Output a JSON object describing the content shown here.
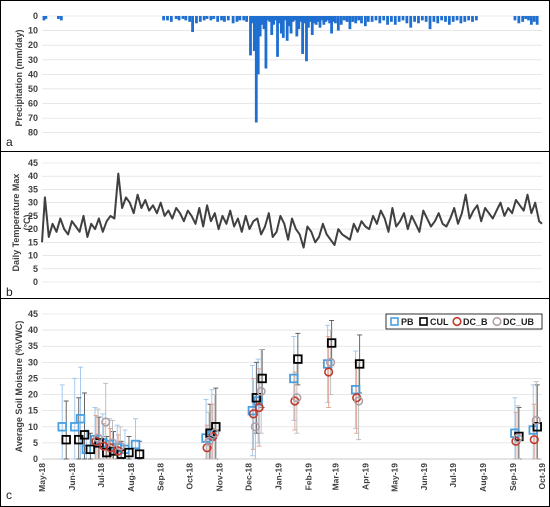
{
  "colors": {
    "precip": "#1f6fd1",
    "temp": "#404040",
    "grid": "#d9d9d9",
    "frame": "#000000",
    "PB": "#4a9fe0",
    "CUL": "#000000",
    "DC_B": "#c0392b",
    "DC_UB": "#b0a0a8",
    "err_PB": "#9cc4ea",
    "err_CUL": "#555555",
    "err_DC_B": "#e0a090",
    "err_DC_UB": "#b8b8b8"
  },
  "panels": [
    {
      "label": "a"
    },
    {
      "label": "b"
    },
    {
      "label": "c"
    }
  ],
  "chart_data": [
    {
      "type": "bar",
      "panel": "a",
      "ylabel": "Precipitation (mm/day)",
      "y_inverted": true,
      "ylim": [
        0,
        85
      ],
      "yticks": [
        "0",
        "10",
        "20",
        "30",
        "40",
        "50",
        "60",
        "70",
        "80"
      ],
      "xlim": [
        "2018-05-01",
        "2019-10-01"
      ],
      "x": [
        "2018-05-03",
        "2018-05-05",
        "2018-05-18",
        "2018-05-21",
        "2018-09-04",
        "2018-09-08",
        "2018-09-12",
        "2018-09-17",
        "2018-09-20",
        "2018-09-24",
        "2018-09-27",
        "2018-10-01",
        "2018-10-04",
        "2018-10-08",
        "2018-10-12",
        "2018-10-16",
        "2018-10-19",
        "2018-10-23",
        "2018-10-26",
        "2018-10-30",
        "2018-11-03",
        "2018-11-06",
        "2018-11-10",
        "2018-11-15",
        "2018-11-19",
        "2018-11-22",
        "2018-11-26",
        "2018-11-29",
        "2018-12-03",
        "2018-12-05",
        "2018-12-07",
        "2018-12-09",
        "2018-12-11",
        "2018-12-13",
        "2018-12-15",
        "2018-12-17",
        "2018-12-19",
        "2018-12-21",
        "2018-12-23",
        "2018-12-25",
        "2018-12-27",
        "2018-12-29",
        "2018-12-31",
        "2019-01-02",
        "2019-01-04",
        "2019-01-06",
        "2019-01-08",
        "2019-01-10",
        "2019-01-12",
        "2019-01-14",
        "2019-01-16",
        "2019-01-18",
        "2019-01-20",
        "2019-01-22",
        "2019-01-24",
        "2019-01-26",
        "2019-01-28",
        "2019-01-30",
        "2019-02-01",
        "2019-02-03",
        "2019-02-05",
        "2019-02-07",
        "2019-02-09",
        "2019-02-11",
        "2019-02-13",
        "2019-02-15",
        "2019-02-17",
        "2019-02-19",
        "2019-02-21",
        "2019-02-23",
        "2019-02-25",
        "2019-02-27",
        "2019-03-01",
        "2019-03-04",
        "2019-03-07",
        "2019-03-10",
        "2019-03-13",
        "2019-03-16",
        "2019-03-19",
        "2019-03-22",
        "2019-03-25",
        "2019-03-28",
        "2019-04-01",
        "2019-04-04",
        "2019-04-08",
        "2019-04-12",
        "2019-04-16",
        "2019-04-20",
        "2019-04-24",
        "2019-04-28",
        "2019-05-02",
        "2019-05-06",
        "2019-05-10",
        "2019-05-14",
        "2019-05-18",
        "2019-05-22",
        "2019-05-26",
        "2019-05-30",
        "2019-06-03",
        "2019-06-07",
        "2019-06-11",
        "2019-06-15",
        "2019-06-19",
        "2019-06-23",
        "2019-06-27",
        "2019-07-01",
        "2019-07-05",
        "2019-07-09",
        "2019-07-13",
        "2019-07-17",
        "2019-07-21",
        "2019-07-25",
        "2019-09-03",
        "2019-09-07",
        "2019-09-11",
        "2019-09-14",
        "2019-09-17",
        "2019-09-20",
        "2019-09-23",
        "2019-09-26"
      ],
      "values": [
        3,
        2,
        2,
        3,
        3,
        3,
        4,
        2,
        3,
        2,
        3,
        4,
        11,
        5,
        4,
        3,
        2,
        3,
        2,
        4,
        3,
        4,
        3,
        5,
        4,
        3,
        3,
        4,
        27,
        5,
        24,
        73,
        40,
        14,
        6,
        9,
        36,
        3,
        4,
        13,
        6,
        3,
        28,
        5,
        12,
        15,
        3,
        17,
        7,
        12,
        4,
        3,
        14,
        9,
        4,
        26,
        5,
        31,
        8,
        4,
        13,
        5,
        6,
        4,
        8,
        3,
        6,
        4,
        3,
        5,
        12,
        4,
        5,
        10,
        6,
        3,
        4,
        9,
        4,
        5,
        3,
        5,
        7,
        4,
        4,
        3,
        5,
        3,
        6,
        4,
        6,
        4,
        3,
        5,
        8,
        4,
        5,
        3,
        4,
        9,
        4,
        5,
        3,
        4,
        6,
        4,
        3,
        5,
        4,
        3,
        4,
        3,
        3,
        5,
        4,
        2,
        3,
        6,
        4,
        6
      ]
    },
    {
      "type": "line",
      "panel": "b",
      "ylabel": "Daily Temperature Max (°C)",
      "ylim": [
        0,
        45
      ],
      "yticks": [
        "0",
        "5",
        "10",
        "15",
        "20",
        "25",
        "30",
        "35",
        "40",
        "45"
      ],
      "xlim": [
        "2018-05-01",
        "2019-10-01"
      ],
      "x": [
        "2018-05-01",
        "2018-05-04",
        "2018-05-08",
        "2018-05-12",
        "2018-05-16",
        "2018-05-20",
        "2018-05-24",
        "2018-05-28",
        "2018-06-01",
        "2018-06-05",
        "2018-06-09",
        "2018-06-13",
        "2018-06-17",
        "2018-06-21",
        "2018-06-25",
        "2018-06-29",
        "2018-07-03",
        "2018-07-07",
        "2018-07-11",
        "2018-07-15",
        "2018-07-19",
        "2018-07-23",
        "2018-07-27",
        "2018-07-31",
        "2018-08-04",
        "2018-08-08",
        "2018-08-12",
        "2018-08-16",
        "2018-08-20",
        "2018-08-24",
        "2018-08-28",
        "2018-09-01",
        "2018-09-05",
        "2018-09-09",
        "2018-09-13",
        "2018-09-17",
        "2018-09-21",
        "2018-09-25",
        "2018-09-29",
        "2018-10-03",
        "2018-10-07",
        "2018-10-11",
        "2018-10-15",
        "2018-10-19",
        "2018-10-23",
        "2018-10-27",
        "2018-10-31",
        "2018-11-04",
        "2018-11-08",
        "2018-11-12",
        "2018-11-16",
        "2018-11-20",
        "2018-11-24",
        "2018-11-28",
        "2018-12-02",
        "2018-12-06",
        "2018-12-10",
        "2018-12-14",
        "2018-12-18",
        "2018-12-22",
        "2018-12-26",
        "2018-12-30",
        "2019-01-03",
        "2019-01-07",
        "2019-01-11",
        "2019-01-15",
        "2019-01-19",
        "2019-01-23",
        "2019-01-27",
        "2019-01-31",
        "2019-02-04",
        "2019-02-08",
        "2019-02-12",
        "2019-02-16",
        "2019-02-20",
        "2019-02-24",
        "2019-02-28",
        "2019-03-04",
        "2019-03-08",
        "2019-03-12",
        "2019-03-16",
        "2019-03-20",
        "2019-03-24",
        "2019-03-28",
        "2019-04-01",
        "2019-04-05",
        "2019-04-09",
        "2019-04-13",
        "2019-04-17",
        "2019-04-21",
        "2019-04-25",
        "2019-04-29",
        "2019-05-03",
        "2019-05-07",
        "2019-05-11",
        "2019-05-15",
        "2019-05-19",
        "2019-05-23",
        "2019-05-27",
        "2019-05-31",
        "2019-06-04",
        "2019-06-08",
        "2019-06-12",
        "2019-06-16",
        "2019-06-20",
        "2019-06-24",
        "2019-06-28",
        "2019-07-02",
        "2019-07-06",
        "2019-07-10",
        "2019-07-14",
        "2019-07-18",
        "2019-07-22",
        "2019-07-26",
        "2019-07-30",
        "2019-08-03",
        "2019-08-07",
        "2019-08-11",
        "2019-08-15",
        "2019-08-19",
        "2019-08-23",
        "2019-08-27",
        "2019-08-31",
        "2019-09-04",
        "2019-09-08",
        "2019-09-12",
        "2019-09-16",
        "2019-09-20",
        "2019-09-24",
        "2019-09-28",
        "2019-10-01"
      ],
      "values": [
        15,
        32,
        17,
        22,
        19,
        24,
        20,
        18,
        23,
        21,
        19,
        25,
        17,
        22,
        20,
        24,
        19,
        23,
        25,
        24,
        41,
        28,
        32,
        30,
        26,
        33,
        28,
        31,
        27,
        29,
        26,
        30,
        25,
        27,
        24,
        28,
        26,
        23,
        27,
        25,
        22,
        28,
        21,
        29,
        23,
        26,
        20,
        25,
        22,
        27,
        21,
        24,
        19,
        25,
        20,
        23,
        24,
        18,
        21,
        26,
        17,
        19,
        25,
        22,
        16,
        24,
        20,
        18,
        13,
        21,
        19,
        15,
        17,
        22,
        18,
        16,
        14,
        20,
        18,
        17,
        16,
        22,
        19,
        23,
        21,
        20,
        25,
        22,
        27,
        24,
        19,
        28,
        21,
        23,
        26,
        20,
        25,
        22,
        19,
        27,
        24,
        21,
        23,
        26,
        22,
        21,
        24,
        28,
        22,
        26,
        33,
        24,
        27,
        29,
        23,
        28,
        26,
        24,
        27,
        30,
        25,
        28,
        26,
        31,
        29,
        27,
        33,
        26,
        30,
        23,
        22
      ]
    },
    {
      "type": "scatter",
      "panel": "c",
      "ylabel": "Average Soil Moisture (%VWC)",
      "ylim": [
        0,
        45
      ],
      "yticks": [
        "0",
        "5",
        "10",
        "15",
        "20",
        "25",
        "30",
        "35",
        "40",
        "45"
      ],
      "xlim": [
        "2018-05-01",
        "2019-10-01"
      ],
      "xticks": [
        "May-18",
        "Jun-18",
        "Jul-18",
        "Aug-18",
        "Sep-18",
        "Oct-18",
        "Nov-18",
        "Dec-18",
        "Jan-19",
        "Feb-19",
        "Mar-19",
        "Apr-19",
        "May-19",
        "Jun-19",
        "Jul-19",
        "Aug-19",
        "Sep-19",
        "Oct-19"
      ],
      "legend": {
        "position": "top-right",
        "entries": [
          "PB",
          "CUL",
          "DC_B",
          "DC_UB"
        ]
      },
      "series": [
        {
          "name": "PB",
          "marker": "square",
          "points": [
            {
              "x": "2018-05-24",
              "y": 10,
              "err": 13
            },
            {
              "x": "2018-06-06",
              "y": 10,
              "err": 15
            },
            {
              "x": "2018-06-12",
              "y": 12.5,
              "err": 16
            },
            {
              "x": "2018-06-18",
              "y": 3,
              "err": 6
            },
            {
              "x": "2018-06-27",
              "y": 6,
              "err": 10
            },
            {
              "x": "2018-07-05",
              "y": 5,
              "err": 9
            },
            {
              "x": "2018-07-12",
              "y": 4.5,
              "err": 8
            },
            {
              "x": "2018-07-20",
              "y": 3.5,
              "err": 7
            },
            {
              "x": "2018-07-28",
              "y": 3,
              "err": 6
            },
            {
              "x": "2018-08-08",
              "y": 4.5,
              "err": 8
            },
            {
              "x": "2018-10-20",
              "y": 6.5,
              "err": 12
            },
            {
              "x": "2018-10-26",
              "y": 7.5,
              "err": 14
            },
            {
              "x": "2018-12-07",
              "y": 15,
              "err": 14
            },
            {
              "x": "2018-12-13",
              "y": 18,
              "err": 13
            },
            {
              "x": "2019-01-19",
              "y": 25,
              "err": 13
            },
            {
              "x": "2019-02-23",
              "y": 29.5,
              "err": 12
            },
            {
              "x": "2019-03-24",
              "y": 21.5,
              "err": 12
            },
            {
              "x": "2019-09-05",
              "y": 8,
              "err": 11
            },
            {
              "x": "2019-09-24",
              "y": 9,
              "err": 14
            }
          ]
        },
        {
          "name": "CUL",
          "marker": "square",
          "points": [
            {
              "x": "2018-05-24",
              "y": 6,
              "err": 12
            },
            {
              "x": "2018-06-06",
              "y": 6,
              "err": 13
            },
            {
              "x": "2018-06-12",
              "y": 7.5,
              "err": 13
            },
            {
              "x": "2018-06-18",
              "y": 3,
              "err": 5
            },
            {
              "x": "2018-06-27",
              "y": 5,
              "err": 8
            },
            {
              "x": "2018-07-05",
              "y": 2,
              "err": 5
            },
            {
              "x": "2018-07-12",
              "y": 2.5,
              "err": 6
            },
            {
              "x": "2018-07-20",
              "y": 1.5,
              "err": 4
            },
            {
              "x": "2018-07-28",
              "y": 2,
              "err": 5
            },
            {
              "x": "2018-08-08",
              "y": 1.5,
              "err": 4
            },
            {
              "x": "2018-10-20",
              "y": 8,
              "err": 9
            },
            {
              "x": "2018-10-26",
              "y": 10,
              "err": 12
            },
            {
              "x": "2018-12-07",
              "y": 19,
              "err": 11
            },
            {
              "x": "2018-12-13",
              "y": 25,
              "err": 9
            },
            {
              "x": "2019-01-19",
              "y": 31,
              "err": 8
            },
            {
              "x": "2019-02-23",
              "y": 36,
              "err": 7
            },
            {
              "x": "2019-03-24",
              "y": 29.5,
              "err": 9
            },
            {
              "x": "2019-09-05",
              "y": 7,
              "err": 9
            },
            {
              "x": "2019-09-24",
              "y": 10,
              "err": 13
            }
          ]
        },
        {
          "name": "DC_B",
          "marker": "circle",
          "points": [
            {
              "x": "2018-06-27",
              "y": 5.5,
              "err": 8
            },
            {
              "x": "2018-07-05",
              "y": 4,
              "err": 7
            },
            {
              "x": "2018-07-12",
              "y": 3.5,
              "err": 6
            },
            {
              "x": "2018-07-20",
              "y": 2.5,
              "err": 5
            },
            {
              "x": "2018-10-20",
              "y": 3.5,
              "err": 7
            },
            {
              "x": "2018-10-26",
              "y": 7,
              "err": 10
            },
            {
              "x": "2018-12-07",
              "y": 14,
              "err": 11
            },
            {
              "x": "2018-12-13",
              "y": 16,
              "err": 12
            },
            {
              "x": "2019-01-19",
              "y": 18,
              "err": 9
            },
            {
              "x": "2019-02-23",
              "y": 27,
              "err": 11
            },
            {
              "x": "2019-03-24",
              "y": 19,
              "err": 11
            },
            {
              "x": "2019-09-05",
              "y": 5.5,
              "err": 9
            },
            {
              "x": "2019-09-24",
              "y": 6,
              "err": 11
            }
          ]
        },
        {
          "name": "DC_UB",
          "marker": "circle",
          "points": [
            {
              "x": "2018-06-27",
              "y": 6.5,
              "err": 9
            },
            {
              "x": "2018-07-05",
              "y": 11.5,
              "err": 12
            },
            {
              "x": "2018-07-12",
              "y": 5,
              "err": 7
            },
            {
              "x": "2018-07-20",
              "y": 4,
              "err": 6
            },
            {
              "x": "2018-10-20",
              "y": 5.5,
              "err": 9
            },
            {
              "x": "2018-10-26",
              "y": 8,
              "err": 12
            },
            {
              "x": "2018-12-07",
              "y": 10,
              "err": 10
            },
            {
              "x": "2018-12-13",
              "y": 21,
              "err": 13
            },
            {
              "x": "2019-01-19",
              "y": 19,
              "err": 11
            },
            {
              "x": "2019-02-23",
              "y": 30,
              "err": 10
            },
            {
              "x": "2019-03-24",
              "y": 18,
              "err": 12
            },
            {
              "x": "2019-09-05",
              "y": 6.5,
              "err": 10
            },
            {
              "x": "2019-09-24",
              "y": 12,
              "err": 12
            }
          ]
        }
      ]
    }
  ]
}
